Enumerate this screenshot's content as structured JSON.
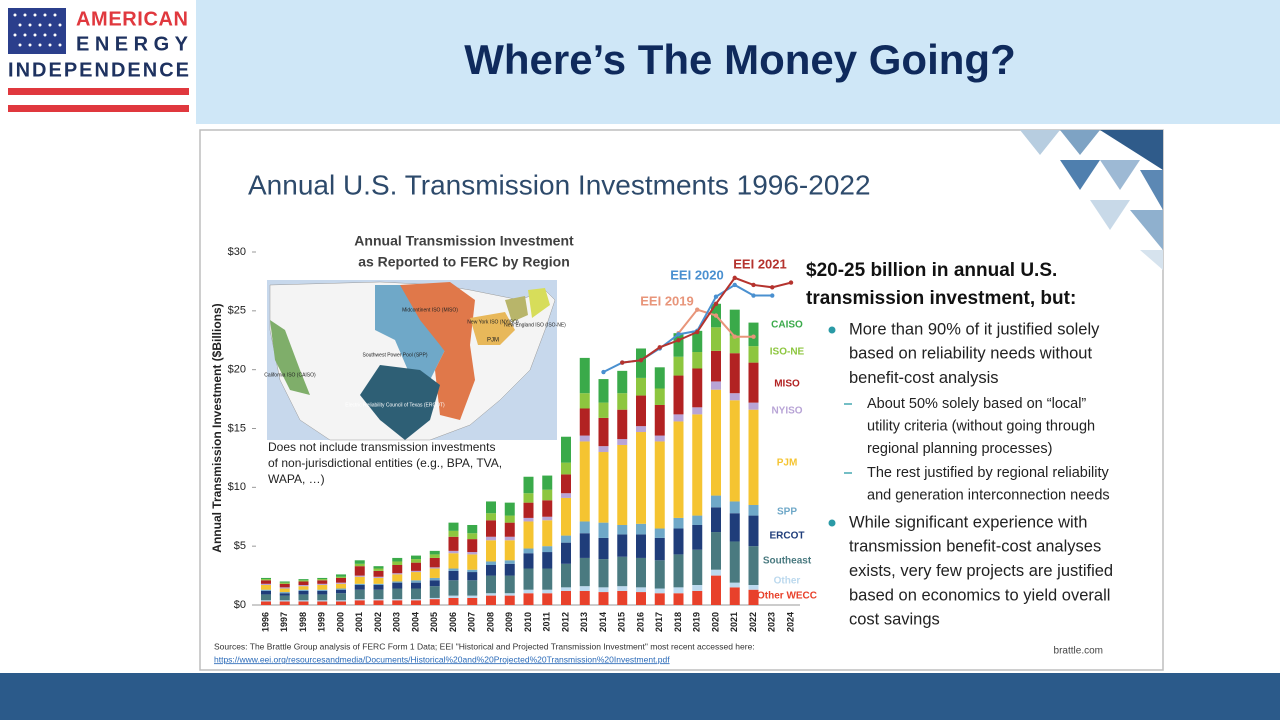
{
  "header": {
    "logo": [
      "AMERICAN",
      "ENERGY",
      "INDEPENDENCE"
    ],
    "title": "Where’s The Money Going?"
  },
  "slide": {
    "title": "Annual U.S. Transmission Investments 1996-2022",
    "map": {
      "title": [
        "Annual Transmission Investment",
        "as Reported to FERC by Region"
      ],
      "labels": [
        "Midcontinent ISO (MISO)",
        "New York ISO (NYISO)",
        "New England ISO (ISO-NE)",
        "PJM",
        "Southwest Power Pool (SPP)",
        "California ISO (CAISO)",
        "Electric Reliability Council of Texas (ERCOT)"
      ],
      "note": [
        "Does not include transmission investments",
        "of non-jurisdictional entities (e.g., BPA, TVA,",
        "WAPA, …)"
      ]
    },
    "heading": [
      "$20-25 billion in annual U.S.",
      "transmission investment, but:"
    ],
    "bullets": [
      {
        "lines": [
          "More than 90% of it justified solely",
          "based on reliability needs without",
          "benefit-cost analysis"
        ],
        "sub": [
          {
            "lines": [
              "About 50% solely based on “local”",
              "utility criteria (without going through",
              "regional planning processes)"
            ]
          },
          {
            "lines": [
              "The rest justified by regional reliability",
              "and generation interconnection needs"
            ]
          }
        ]
      },
      {
        "lines": [
          "While significant experience with",
          "transmission benefit-cost analyses",
          "exists, very few projects are justified",
          "based on economics to yield overall",
          "cost savings"
        ],
        "sub": []
      }
    ],
    "sources": [
      "Sources: The Brattle Group analysis of FERC Form 1 Data; EEI \"Historical and Projected Transmission Investment\" most recent accessed here:",
      "https://www.eei.org/resourcesandmedia/Documents/Historical%20and%20Projected%20Transmission%20Investment.pdf"
    ],
    "footer": "brattle.com"
  },
  "chart_data": {
    "type": "stacked_bar",
    "y_label": "Annual Transmission Investment ($Billions)",
    "categories": [
      "1996",
      "1997",
      "1998",
      "1999",
      "2000",
      "2001",
      "2002",
      "2003",
      "2004",
      "2005",
      "2006",
      "2007",
      "2008",
      "2009",
      "2010",
      "2011",
      "2012",
      "2013",
      "2014",
      "2015",
      "2016",
      "2017",
      "2018",
      "2019",
      "2020",
      "2021",
      "2022",
      "2023",
      "2024"
    ],
    "ylim": [
      0,
      30
    ],
    "yticks": [
      {
        "value": 0,
        "label": "$0"
      },
      {
        "value": 5,
        "label": "$5"
      },
      {
        "value": 10,
        "label": "$10"
      },
      {
        "value": 15,
        "label": "$15"
      },
      {
        "value": 20,
        "label": "$20"
      },
      {
        "value": 25,
        "label": "$25"
      },
      {
        "value": 30,
        "label": "$30"
      }
    ],
    "series": [
      {
        "name": "Other WECC",
        "color": "#e8412b",
        "values": [
          0.3,
          0.3,
          0.3,
          0.3,
          0.3,
          0.4,
          0.4,
          0.4,
          0.4,
          0.5,
          0.6,
          0.6,
          0.8,
          0.8,
          1.0,
          1.0,
          1.2,
          1.2,
          1.1,
          1.2,
          1.1,
          1.0,
          1.0,
          1.2,
          2.5,
          1.5,
          1.3,
          null,
          null
        ]
      },
      {
        "name": "Other",
        "color": "#bcd9ee",
        "values": [
          0.1,
          0.1,
          0.1,
          0.1,
          0.1,
          0.1,
          0.1,
          0.1,
          0.1,
          0.1,
          0.2,
          0.2,
          0.2,
          0.2,
          0.3,
          0.3,
          0.3,
          0.4,
          0.4,
          0.4,
          0.4,
          0.4,
          0.5,
          0.5,
          0.5,
          0.4,
          0.4,
          null,
          null
        ]
      },
      {
        "name": "Southeast",
        "color": "#4a7a80",
        "values": [
          0.5,
          0.4,
          0.5,
          0.5,
          0.6,
          0.8,
          0.8,
          0.9,
          0.9,
          1.0,
          1.3,
          1.3,
          1.5,
          1.5,
          1.8,
          1.8,
          2.0,
          2.4,
          2.4,
          2.5,
          2.5,
          2.4,
          2.8,
          3.0,
          3.2,
          3.5,
          3.3,
          null,
          null
        ]
      },
      {
        "name": "ERCOT",
        "color": "#1f3d7a",
        "values": [
          0.3,
          0.2,
          0.3,
          0.3,
          0.3,
          0.4,
          0.4,
          0.5,
          0.5,
          0.5,
          0.8,
          0.7,
          0.9,
          1.0,
          1.3,
          1.4,
          1.8,
          2.1,
          1.8,
          1.9,
          2.0,
          1.9,
          2.2,
          2.1,
          2.1,
          2.4,
          2.6,
          null,
          null
        ]
      },
      {
        "name": "SPP",
        "color": "#6fa8c8",
        "values": [
          0.1,
          0.1,
          0.1,
          0.1,
          0.1,
          0.1,
          0.1,
          0.1,
          0.2,
          0.2,
          0.2,
          0.2,
          0.3,
          0.3,
          0.4,
          0.5,
          0.6,
          1.0,
          1.3,
          0.8,
          0.9,
          0.8,
          0.9,
          0.8,
          1.0,
          1.0,
          0.9,
          null,
          null
        ]
      },
      {
        "name": "PJM",
        "color": "#f5c431",
        "values": [
          0.4,
          0.3,
          0.3,
          0.4,
          0.4,
          0.6,
          0.5,
          0.6,
          0.7,
          0.8,
          1.3,
          1.3,
          1.8,
          1.7,
          2.3,
          2.2,
          3.2,
          6.8,
          6.0,
          6.8,
          7.8,
          7.4,
          8.2,
          8.6,
          9.0,
          8.6,
          8.1,
          null,
          null
        ]
      },
      {
        "name": "NYISO",
        "color": "#b8a4d6",
        "values": [
          0.1,
          0.1,
          0.1,
          0.1,
          0.1,
          0.1,
          0.1,
          0.1,
          0.1,
          0.1,
          0.2,
          0.2,
          0.3,
          0.3,
          0.3,
          0.3,
          0.4,
          0.5,
          0.5,
          0.5,
          0.5,
          0.5,
          0.6,
          0.6,
          0.7,
          0.6,
          0.6,
          null,
          null
        ]
      },
      {
        "name": "MISO",
        "color": "#b22222",
        "values": [
          0.3,
          0.3,
          0.3,
          0.3,
          0.4,
          0.8,
          0.5,
          0.7,
          0.7,
          0.8,
          1.2,
          1.1,
          1.4,
          1.2,
          1.3,
          1.4,
          1.6,
          2.3,
          2.4,
          2.5,
          2.6,
          2.6,
          3.3,
          3.3,
          2.6,
          3.4,
          3.4,
          null,
          null
        ]
      },
      {
        "name": "ISO-NE",
        "color": "#8dc63f",
        "values": [
          0.1,
          0.1,
          0.1,
          0.1,
          0.1,
          0.2,
          0.2,
          0.3,
          0.3,
          0.3,
          0.5,
          0.5,
          0.6,
          0.6,
          0.8,
          0.9,
          1.0,
          1.3,
          1.3,
          1.4,
          1.5,
          1.4,
          1.6,
          1.4,
          2.0,
          1.5,
          1.4,
          null,
          null
        ]
      },
      {
        "name": "CAISO",
        "color": "#3aaa4a",
        "values": [
          0.1,
          0.1,
          0.1,
          0.1,
          0.2,
          0.3,
          0.2,
          0.3,
          0.3,
          0.3,
          0.7,
          0.7,
          1.0,
          1.1,
          1.4,
          1.2,
          2.2,
          3.0,
          2.0,
          1.9,
          2.5,
          1.8,
          2.0,
          1.8,
          2.0,
          2.2,
          2.0,
          null,
          null
        ]
      }
    ],
    "line_series": [
      {
        "name": "EEI 2019",
        "color": "#e8957a",
        "values": [
          null,
          null,
          null,
          null,
          null,
          null,
          null,
          null,
          null,
          null,
          null,
          null,
          null,
          null,
          null,
          null,
          null,
          null,
          null,
          null,
          null,
          null,
          23.1,
          25.1,
          24.6,
          22.8,
          22.8,
          null,
          null
        ]
      },
      {
        "name": "EEI 2020",
        "color": "#4a90d0",
        "values": [
          null,
          null,
          null,
          null,
          null,
          null,
          null,
          null,
          null,
          null,
          null,
          null,
          null,
          null,
          null,
          null,
          null,
          null,
          19.8,
          20.6,
          20.8,
          21.8,
          23.0,
          23.3,
          26.2,
          27.2,
          26.3,
          26.3,
          null
        ]
      },
      {
        "name": "EEI 2021",
        "color": "#b5332e",
        "values": [
          null,
          null,
          null,
          null,
          null,
          null,
          null,
          null,
          null,
          null,
          null,
          null,
          null,
          null,
          null,
          null,
          null,
          null,
          null,
          20.6,
          20.8,
          21.9,
          22.5,
          23.2,
          25.6,
          27.8,
          27.2,
          27.0,
          27.4
        ]
      }
    ]
  }
}
